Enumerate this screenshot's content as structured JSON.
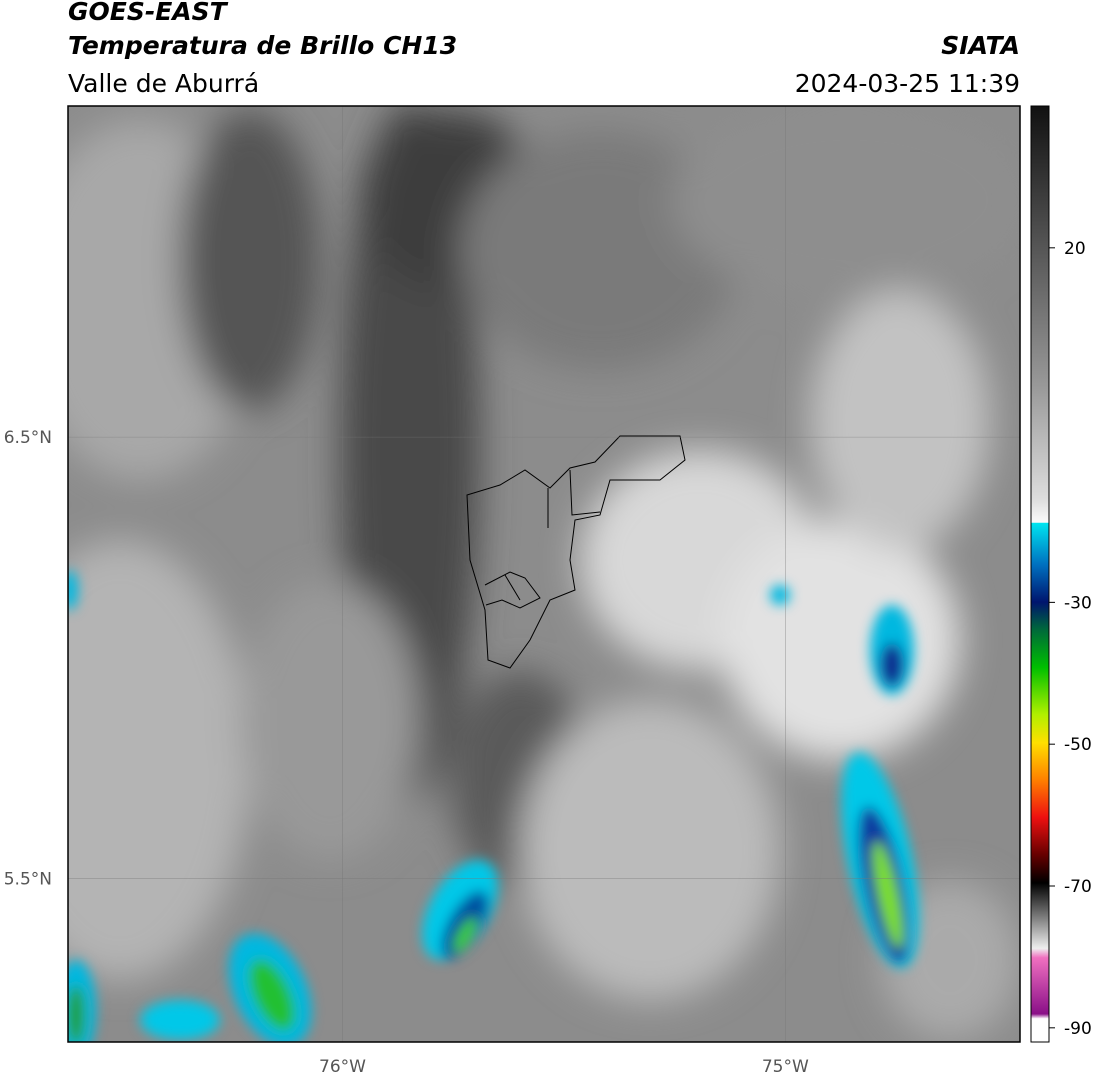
{
  "header": {
    "title": "GOES-EAST",
    "subtitle": "Temperatura de Brillo CH13",
    "region": "Valle de Aburrá",
    "source": "SIATA",
    "timestamp": "2024-03-25 11:39"
  },
  "map": {
    "xlim": [
      -76.62,
      -74.47
    ],
    "ylim": [
      5.13,
      7.25
    ],
    "xticks": [
      {
        "value": -76,
        "label": "76°W"
      },
      {
        "value": -75,
        "label": "75°W"
      }
    ],
    "yticks": [
      {
        "value": 6.5,
        "label": "6.5°N"
      },
      {
        "value": 5.5,
        "label": "5.5°N"
      }
    ],
    "grid": true
  },
  "colorbar": {
    "lim": [
      -92,
      40
    ],
    "ticks": [
      20,
      -30,
      -50,
      -70,
      -90
    ]
  }
}
